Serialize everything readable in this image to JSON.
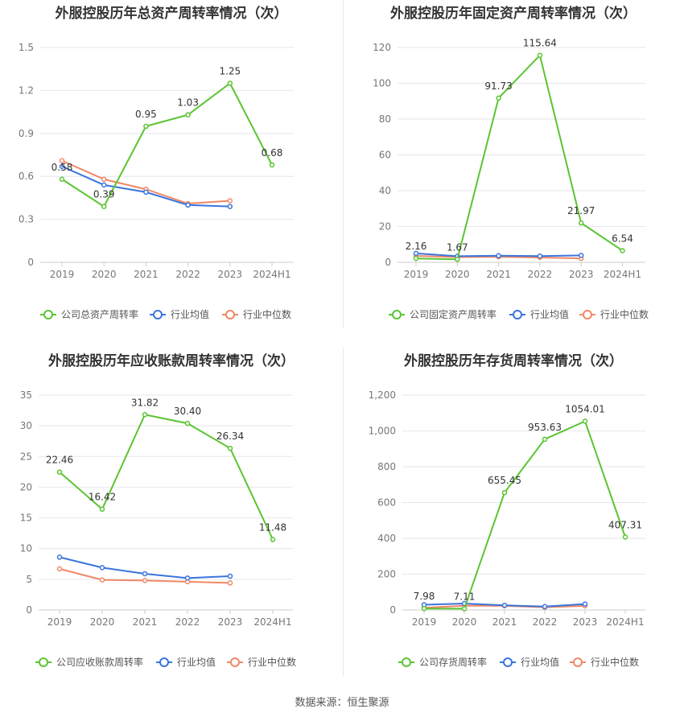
{
  "colors": {
    "company": "#5ac531",
    "avg": "#3a75dd",
    "median": "#f08866",
    "grid": "#e6e6ee",
    "axis_text": "#777777"
  },
  "legend": {
    "company_total": "公司总资产周转率",
    "company_fixed": "公司固定资产周转率",
    "company_receivable": "公司应收账款周转率",
    "company_inventory": "公司存货周转率",
    "avg": "行业均值",
    "median": "行业中位数"
  },
  "source": "数据来源：恒生聚源",
  "chart_data": [
    {
      "type": "line",
      "title": "外服控股历年总资产周转率情况（次）",
      "categories": [
        "2019",
        "2020",
        "2021",
        "2022",
        "2023",
        "2024H1"
      ],
      "ylim": [
        0,
        1.5
      ],
      "yticks": [
        "0",
        "0.3",
        "0.6",
        "0.9",
        "1.2",
        "1.5"
      ],
      "series": [
        {
          "name": "公司总资产周转率",
          "values": [
            0.58,
            0.39,
            0.95,
            1.03,
            1.25,
            0.68
          ],
          "labels": [
            "0.58",
            "0.39",
            "0.95",
            "1.03",
            "1.25",
            "0.68"
          ]
        },
        {
          "name": "行业均值",
          "values": [
            0.67,
            0.54,
            0.49,
            0.4,
            0.39,
            null
          ]
        },
        {
          "name": "行业中位数",
          "values": [
            0.71,
            0.58,
            0.51,
            0.41,
            0.43,
            null
          ]
        }
      ]
    },
    {
      "type": "line",
      "title": "外服控股历年固定资产周转率情况（次）",
      "categories": [
        "2019",
        "2020",
        "2021",
        "2022",
        "2023",
        "2024H1"
      ],
      "ylim": [
        0,
        120
      ],
      "yticks": [
        "0",
        "20",
        "40",
        "60",
        "80",
        "100",
        "120"
      ],
      "series": [
        {
          "name": "公司固定资产周转率",
          "values": [
            2.16,
            1.67,
            91.73,
            115.64,
            21.97,
            6.54
          ],
          "labels": [
            "2.16",
            "1.67",
            "91.73",
            "115.64",
            "21.97",
            "6.54"
          ]
        },
        {
          "name": "行业均值",
          "values": [
            5.0,
            3.4,
            3.7,
            3.5,
            3.9,
            null
          ]
        },
        {
          "name": "行业中位数",
          "values": [
            3.6,
            2.9,
            3.1,
            2.7,
            2.2,
            null
          ]
        }
      ]
    },
    {
      "type": "line",
      "title": "外服控股历年应收账款周转率情况（次）",
      "categories": [
        "2019",
        "2020",
        "2021",
        "2022",
        "2023",
        "2024H1"
      ],
      "ylim": [
        0,
        35
      ],
      "yticks": [
        "0",
        "5",
        "10",
        "15",
        "20",
        "25",
        "30",
        "35"
      ],
      "series": [
        {
          "name": "公司应收账款周转率",
          "values": [
            22.46,
            16.42,
            31.82,
            30.4,
            26.34,
            11.48
          ],
          "labels": [
            "22.46",
            "16.42",
            "31.82",
            "30.40",
            "26.34",
            "11.48"
          ]
        },
        {
          "name": "行业均值",
          "values": [
            8.6,
            6.9,
            5.9,
            5.2,
            5.5,
            null
          ]
        },
        {
          "name": "行业中位数",
          "values": [
            6.7,
            4.9,
            4.8,
            4.6,
            4.4,
            null
          ]
        }
      ]
    },
    {
      "type": "line",
      "title": "外服控股历年存货周转率情况（次）",
      "categories": [
        "2019",
        "2020",
        "2021",
        "2022",
        "2023",
        "2024H1"
      ],
      "ylim": [
        0,
        1200
      ],
      "yticks": [
        "0",
        "200",
        "400",
        "600",
        "800",
        "1,000",
        "1,200"
      ],
      "series": [
        {
          "name": "公司存货周转率",
          "values": [
            7.98,
            7.11,
            655.45,
            953.63,
            1054.01,
            407.31
          ],
          "labels": [
            "7.98",
            "7.11",
            "655.45",
            "953.63",
            "1054.01",
            "407.31"
          ]
        },
        {
          "name": "行业均值",
          "values": [
            29,
            36,
            26,
            19,
            33,
            null
          ]
        },
        {
          "name": "行业中位数",
          "values": [
            12,
            24,
            23,
            15,
            23,
            null
          ]
        }
      ]
    }
  ]
}
